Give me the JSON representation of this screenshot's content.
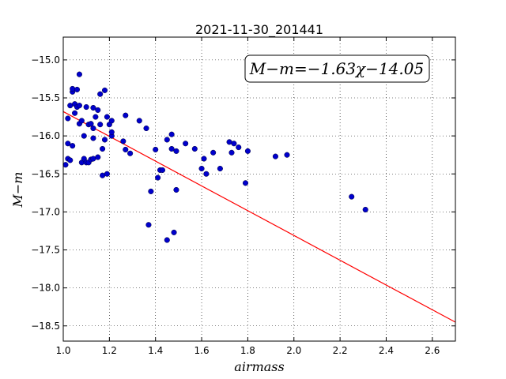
{
  "chart_data": {
    "type": "scatter",
    "title": "2021-11-30_201441",
    "xlabel": "airmass",
    "ylabel": "M−m",
    "xlim": [
      1.0,
      2.7
    ],
    "ylim": [
      -18.7,
      -14.7
    ],
    "y_inverted": true,
    "x_ticks": [
      1.0,
      1.2,
      1.4,
      1.6,
      1.8,
      2.0,
      2.2,
      2.4,
      2.6
    ],
    "x_tick_labels": [
      "1.0",
      "1.2",
      "1.4",
      "1.6",
      "1.8",
      "2.0",
      "2.2",
      "2.4",
      "2.6"
    ],
    "y_ticks": [
      -15.0,
      -15.5,
      -16.0,
      -16.5,
      -17.0,
      -17.5,
      -18.0,
      -18.5
    ],
    "y_tick_labels": [
      "−15.0",
      "−15.5",
      "−16.0",
      "−16.5",
      "−17.0",
      "−17.5",
      "−18.0",
      "−18.5"
    ],
    "grid": true,
    "annotation": "M−m=−1.63χ−14.05",
    "fit": {
      "slope": -1.63,
      "intercept": -14.05,
      "color": "#ff0000"
    },
    "point_color": "#0000cc",
    "points": [
      [
        1.01,
        -16.38
      ],
      [
        1.02,
        -16.3
      ],
      [
        1.02,
        -16.1
      ],
      [
        1.02,
        -15.77
      ],
      [
        1.03,
        -15.6
      ],
      [
        1.03,
        -16.32
      ],
      [
        1.04,
        -15.42
      ],
      [
        1.04,
        -15.38
      ],
      [
        1.04,
        -16.13
      ],
      [
        1.05,
        -15.58
      ],
      [
        1.05,
        -15.7
      ],
      [
        1.06,
        -15.39
      ],
      [
        1.06,
        -15.62
      ],
      [
        1.07,
        -15.19
      ],
      [
        1.07,
        -15.6
      ],
      [
        1.07,
        -15.84
      ],
      [
        1.08,
        -15.8
      ],
      [
        1.08,
        -16.35
      ],
      [
        1.09,
        -16.0
      ],
      [
        1.09,
        -16.3
      ],
      [
        1.1,
        -16.35
      ],
      [
        1.1,
        -15.62
      ],
      [
        1.11,
        -16.35
      ],
      [
        1.11,
        -15.85
      ],
      [
        1.12,
        -16.31
      ],
      [
        1.12,
        -15.84
      ],
      [
        1.13,
        -16.3
      ],
      [
        1.13,
        -16.03
      ],
      [
        1.13,
        -15.9
      ],
      [
        1.13,
        -15.63
      ],
      [
        1.14,
        -15.75
      ],
      [
        1.15,
        -15.66
      ],
      [
        1.15,
        -16.28
      ],
      [
        1.16,
        -15.85
      ],
      [
        1.16,
        -15.45
      ],
      [
        1.17,
        -16.17
      ],
      [
        1.17,
        -16.52
      ],
      [
        1.18,
        -15.4
      ],
      [
        1.18,
        -16.05
      ],
      [
        1.19,
        -15.75
      ],
      [
        1.19,
        -16.5
      ],
      [
        1.2,
        -15.85
      ],
      [
        1.21,
        -15.8
      ],
      [
        1.21,
        -16.0
      ],
      [
        1.21,
        -15.95
      ],
      [
        1.26,
        -16.07
      ],
      [
        1.27,
        -15.73
      ],
      [
        1.27,
        -16.18
      ],
      [
        1.29,
        -16.23
      ],
      [
        1.33,
        -15.8
      ],
      [
        1.36,
        -15.9
      ],
      [
        1.37,
        -17.17
      ],
      [
        1.38,
        -16.73
      ],
      [
        1.4,
        -16.18
      ],
      [
        1.41,
        -16.55
      ],
      [
        1.42,
        -16.45
      ],
      [
        1.43,
        -16.45
      ],
      [
        1.45,
        -16.05
      ],
      [
        1.45,
        -17.37
      ],
      [
        1.47,
        -16.17
      ],
      [
        1.47,
        -15.98
      ],
      [
        1.48,
        -17.27
      ],
      [
        1.49,
        -16.71
      ],
      [
        1.49,
        -16.2
      ],
      [
        1.53,
        -16.1
      ],
      [
        1.57,
        -16.17
      ],
      [
        1.6,
        -16.43
      ],
      [
        1.61,
        -16.3
      ],
      [
        1.62,
        -16.5
      ],
      [
        1.65,
        -16.22
      ],
      [
        1.68,
        -16.43
      ],
      [
        1.72,
        -16.08
      ],
      [
        1.73,
        -16.22
      ],
      [
        1.74,
        -16.1
      ],
      [
        1.76,
        -16.15
      ],
      [
        1.79,
        -16.62
      ],
      [
        1.8,
        -16.2
      ],
      [
        1.92,
        -16.27
      ],
      [
        1.97,
        -16.25
      ],
      [
        2.25,
        -16.8
      ],
      [
        2.31,
        -16.97
      ]
    ]
  }
}
